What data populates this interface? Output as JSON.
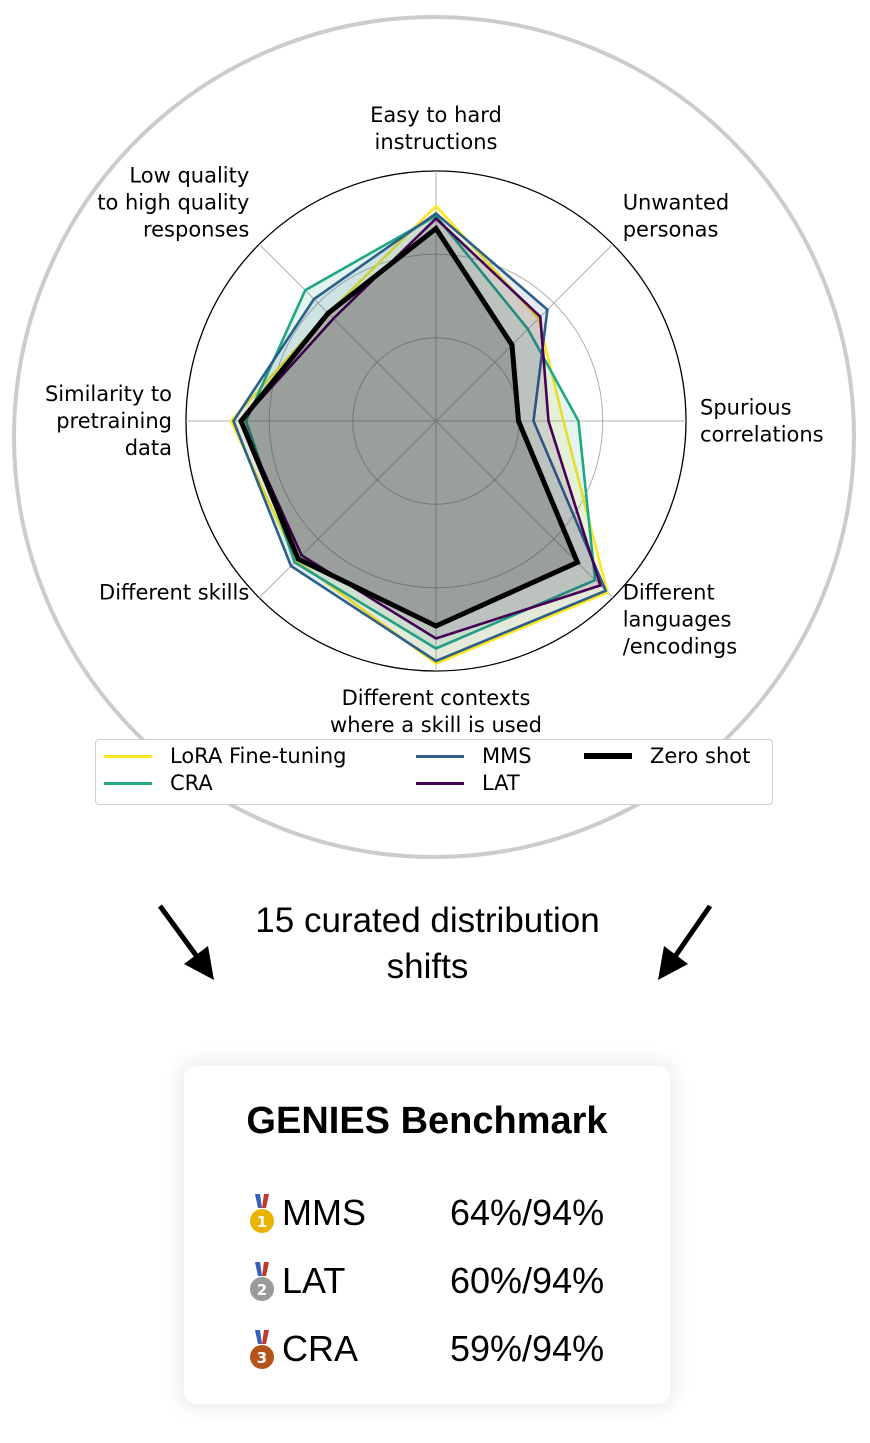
{
  "chart_data": {
    "type": "radar",
    "title": "",
    "axes": [
      {
        "label_lines": [
          "Easy to hard",
          "instructions"
        ]
      },
      {
        "label_lines": [
          "Unwanted",
          "personas"
        ]
      },
      {
        "label_lines": [
          "Spurious",
          "correlations"
        ]
      },
      {
        "label_lines": [
          "Different",
          "languages",
          "/encodings"
        ]
      },
      {
        "label_lines": [
          "Different contexts",
          "where a skill is used"
        ]
      },
      {
        "label_lines": [
          "Different skills"
        ]
      },
      {
        "label_lines": [
          "Similarity to",
          "pretraining",
          "data"
        ]
      },
      {
        "label_lines": [
          "Low quality",
          "to high quality",
          "responses"
        ]
      }
    ],
    "rlim": [
      0,
      1
    ],
    "grid_rings": [
      0.333,
      0.667,
      1.0
    ],
    "grid": true,
    "legend_placement": "bottom",
    "series": [
      {
        "name": "LoRA Fine-tuning",
        "color": "#fde725",
        "values": [
          0.86,
          0.58,
          0.51,
          0.97,
          0.97,
          0.79,
          0.82,
          0.61
        ]
      },
      {
        "name": "CRA",
        "color": "#21a784",
        "values": [
          0.82,
          0.52,
          0.57,
          0.9,
          0.91,
          0.8,
          0.76,
          0.74
        ]
      },
      {
        "name": "MMS",
        "color": "#2c5f8a",
        "values": [
          0.83,
          0.63,
          0.39,
          0.96,
          0.96,
          0.82,
          0.81,
          0.69
        ]
      },
      {
        "name": "LAT",
        "color": "#440154",
        "values": [
          0.81,
          0.59,
          0.45,
          0.93,
          0.87,
          0.76,
          0.78,
          0.58
        ]
      },
      {
        "name": "Zero shot",
        "color": "#000000",
        "values": [
          0.77,
          0.43,
          0.33,
          0.8,
          0.82,
          0.78,
          0.78,
          0.61
        ]
      }
    ]
  },
  "caption": {
    "line1": "15 curated distribution",
    "line2": "shifts"
  },
  "benchmark": {
    "title": "GENIES Benchmark",
    "rows": [
      {
        "rank_icon": "gold-medal-icon",
        "medal_color": "#e8b400",
        "rank": "1",
        "name": "MMS",
        "score": "64%/94%"
      },
      {
        "rank_icon": "silver-medal-icon",
        "medal_color": "#9a9a9a",
        "rank": "2",
        "name": "LAT",
        "score": "60%/94%"
      },
      {
        "rank_icon": "bronze-medal-icon",
        "medal_color": "#b5541a",
        "rank": "3",
        "name": "CRA",
        "score": "59%/94%"
      }
    ]
  }
}
